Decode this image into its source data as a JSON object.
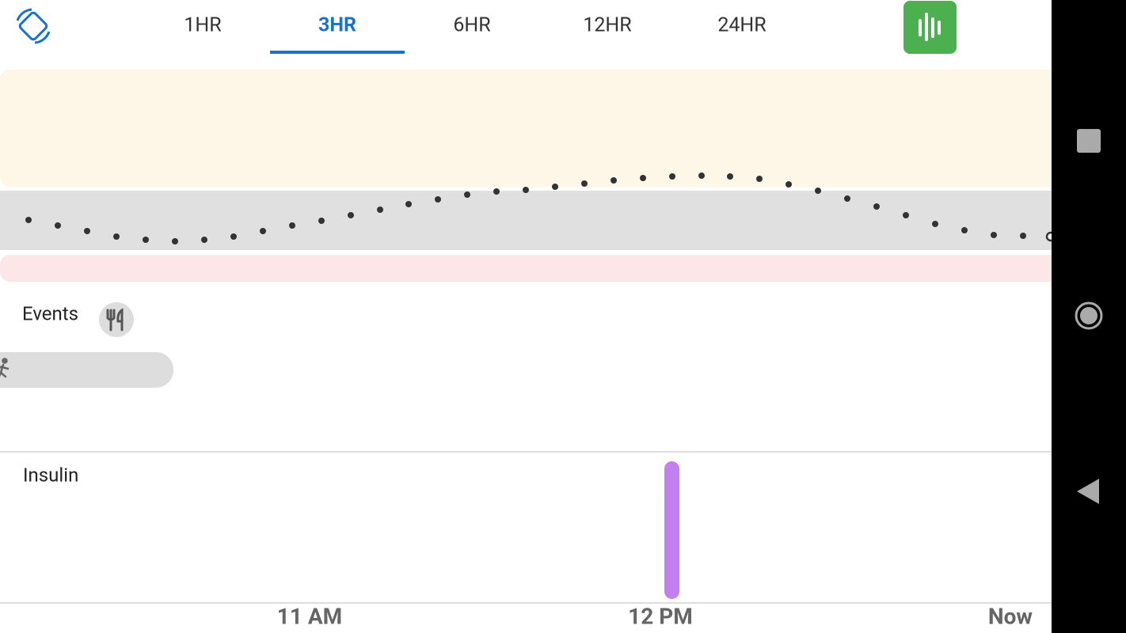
{
  "tabs": [
    "1HR",
    "3HR",
    "6HR",
    "12HR",
    "24HR"
  ],
  "events": {
    "label": "Events"
  },
  "insulin": {
    "label": "Insulin"
  },
  "time_axis": [
    "11 AM",
    "12 PM",
    "Now"
  ]
}
